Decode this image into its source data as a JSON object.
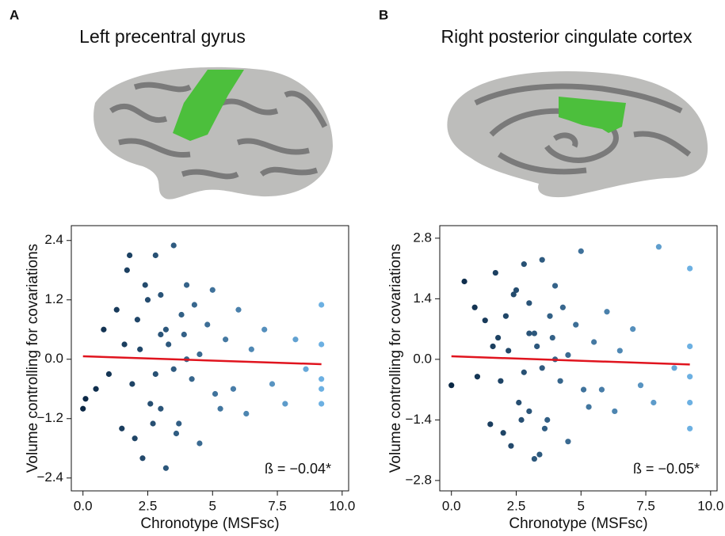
{
  "chart_data": [
    {
      "type": "scatter",
      "panel": "A",
      "title": "Left precentral  gyrus",
      "x_label": "Chronotype (MSFsc)",
      "y_label": "Volume controlling for covariations",
      "annotation": "ß = −0.04*",
      "xlim": [
        -0.45,
        10.25
      ],
      "ylim": [
        -2.66,
        2.7
      ],
      "xticks": [
        {
          "value": 0,
          "label": "0.0"
        },
        2.5,
        5,
        7.5,
        {
          "value": 10,
          "label": "10.0"
        }
      ],
      "yticks": [
        {
          "value": -2.4,
          "label": "−2.4"
        },
        {
          "value": -1.2,
          "label": "−1.2"
        },
        {
          "value": 0,
          "label": "0.0"
        },
        1.2,
        2.4
      ],
      "colormap": [
        "#0a2744",
        "#6cb0e2"
      ],
      "x": [
        0.1,
        0.0,
        0.5,
        0.8,
        1.0,
        1.3,
        1.5,
        1.7,
        1.8,
        2.0,
        2.1,
        2.3,
        2.5,
        2.6,
        2.8,
        3.0,
        3.0,
        3.2,
        3.3,
        3.5,
        3.7,
        3.8,
        4.0,
        4.2,
        4.5,
        4.8,
        5.0,
        5.3,
        5.5,
        5.8,
        6.0,
        6.3,
        6.5,
        7.0,
        7.3,
        7.8,
        8.2,
        8.6,
        9.2,
        9.2,
        9.2,
        9.2,
        9.2,
        2.2,
        3.5,
        4.5,
        2.8,
        3.2,
        1.9,
        4.0,
        2.4,
        3.0,
        3.6,
        4.3,
        2.7,
        3.9,
        1.6,
        5.1
      ],
      "y": [
        -0.8,
        -1.0,
        -0.6,
        0.6,
        -0.3,
        1.0,
        -1.4,
        1.8,
        2.1,
        -1.6,
        0.8,
        -2.0,
        1.2,
        -0.9,
        2.1,
        0.5,
        -1.0,
        -2.2,
        0.3,
        2.3,
        -1.3,
        0.9,
        1.5,
        -0.4,
        -1.7,
        0.7,
        1.4,
        -1.0,
        0.4,
        -0.6,
        1.0,
        -1.1,
        0.2,
        0.6,
        -0.5,
        -0.9,
        0.4,
        -0.2,
        1.1,
        0.3,
        -0.4,
        -0.9,
        -0.6,
        0.2,
        -0.2,
        0.1,
        -0.3,
        0.6,
        -0.5,
        0.0,
        1.5,
        1.3,
        -1.5,
        1.1,
        -1.3,
        0.5,
        0.3,
        -0.7
      ],
      "fit": {
        "color": "#e0141e",
        "x": [
          0,
          9.2
        ],
        "y": [
          0.06,
          -0.1
        ]
      }
    },
    {
      "type": "scatter",
      "panel": "B",
      "title": "Right posterior cingulate cortex",
      "x_label": "Chronotype (MSFsc)",
      "y_label": "Volume controlling for covariations",
      "annotation": "ß = −0.05*",
      "xlim": [
        -0.45,
        10.25
      ],
      "ylim": [
        -3.04,
        3.09
      ],
      "xticks": [
        {
          "value": 0,
          "label": "0.0"
        },
        2.5,
        5,
        7.5,
        {
          "value": 10,
          "label": "10.0"
        }
      ],
      "yticks": [
        {
          "value": -2.8,
          "label": "−2.8"
        },
        {
          "value": -1.4,
          "label": "−1.4"
        },
        {
          "value": 0,
          "label": "0.0"
        },
        1.4,
        2.8
      ],
      "colormap": [
        "#0a2744",
        "#6cb0e2"
      ],
      "x": [
        0.0,
        0.5,
        0.9,
        1.0,
        1.3,
        1.5,
        1.7,
        1.8,
        2.0,
        2.1,
        2.3,
        2.5,
        2.6,
        2.8,
        3.0,
        3.0,
        3.2,
        3.3,
        3.5,
        3.7,
        3.8,
        4.0,
        4.2,
        4.5,
        4.8,
        5.0,
        5.3,
        5.5,
        5.8,
        6.0,
        6.3,
        6.5,
        7.0,
        7.3,
        7.8,
        8.0,
        8.6,
        9.2,
        9.2,
        9.2,
        9.2,
        9.2,
        2.2,
        3.5,
        4.5,
        2.8,
        3.2,
        1.9,
        4.0,
        2.4,
        3.0,
        3.6,
        4.3,
        2.7,
        3.9,
        1.6,
        5.1,
        3.4
      ],
      "y": [
        -0.6,
        1.8,
        1.2,
        -0.4,
        0.9,
        -1.5,
        2.0,
        0.5,
        -1.7,
        1.0,
        -2.0,
        1.6,
        -1.0,
        2.2,
        0.6,
        -1.2,
        -2.3,
        0.3,
        2.3,
        -1.4,
        1.0,
        1.7,
        -0.5,
        -1.9,
        0.8,
        2.5,
        -1.1,
        0.4,
        -0.7,
        1.1,
        -1.2,
        0.2,
        0.7,
        -0.6,
        -1.0,
        2.6,
        -0.2,
        2.1,
        0.3,
        -0.4,
        -1.0,
        -1.6,
        0.2,
        -0.2,
        0.1,
        -0.3,
        0.6,
        -0.5,
        0.0,
        1.5,
        1.3,
        -1.6,
        1.2,
        -1.4,
        0.5,
        0.3,
        -0.7,
        -2.2
      ],
      "fit": {
        "color": "#e0141e",
        "x": [
          0,
          9.2
        ],
        "y": [
          0.07,
          -0.12
        ]
      }
    }
  ]
}
